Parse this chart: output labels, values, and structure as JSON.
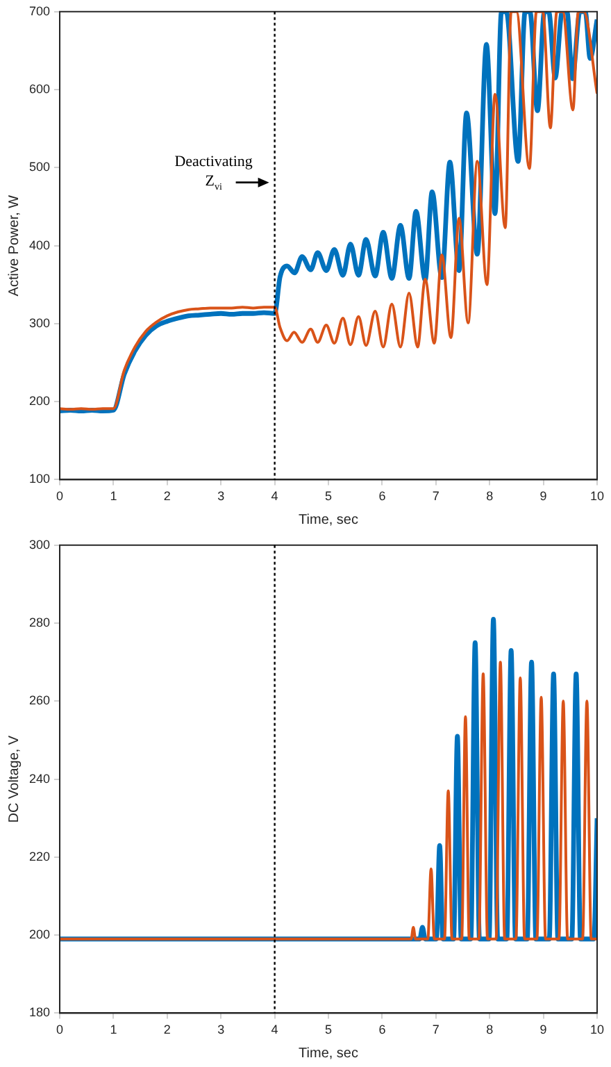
{
  "chart_data": [
    {
      "type": "line",
      "xlabel": "Time, sec",
      "ylabel": "Active Power, W",
      "xlim": [
        0,
        10
      ],
      "xticks": [
        0,
        1,
        2,
        3,
        4,
        5,
        6,
        7,
        8,
        9,
        10
      ],
      "ylim": [
        100,
        700
      ],
      "yticks": [
        100,
        200,
        300,
        400,
        500,
        600,
        700
      ],
      "grid": false,
      "legend": false,
      "marker": "none",
      "line_style": "solid",
      "ref_lines": [
        {
          "axis": "x",
          "value": 4,
          "line_style": "dotted",
          "color": "#000000"
        }
      ],
      "annotations": [
        {
          "text": "Deactivating Z$_{vi}$",
          "x": 4,
          "y": 481
        }
      ],
      "series": [
        {
          "color": "#0072bd",
          "x": [
            0,
            0.2,
            0.4,
            0.6,
            0.8,
            1.0,
            1.2,
            1.4,
            1.6,
            1.8,
            2.0,
            2.2,
            2.4,
            2.6,
            2.8,
            3.0,
            3.2,
            3.4,
            3.6,
            3.8,
            4.0,
            4.1,
            4.23,
            4.37,
            4.51,
            4.67,
            4.8,
            4.96,
            5.11,
            5.27,
            5.41,
            5.56,
            5.7,
            5.87,
            6.02,
            6.18,
            6.34,
            6.5,
            6.63,
            6.8,
            6.93,
            7.11,
            7.26,
            7.43,
            7.57,
            7.77,
            7.94,
            8.1,
            8.22,
            8.31,
            8.53,
            8.66,
            8.75,
            8.89,
            9.02,
            9.1,
            9.22,
            9.35,
            9.44,
            9.54,
            9.68,
            9.78,
            9.87,
            10
          ],
          "values": [
            188,
            189,
            188,
            189,
            188,
            189,
            235,
            265,
            285,
            297,
            303,
            307,
            310,
            311,
            312,
            313,
            312,
            313,
            313,
            314,
            313,
            360,
            374,
            365,
            386,
            369,
            391,
            368,
            395,
            362,
            402,
            362,
            408,
            361,
            417,
            358,
            426,
            358,
            444,
            356,
            469,
            359,
            507,
            368,
            570,
            389,
            658,
            441,
            700,
            700,
            508,
            700,
            700,
            573,
            700,
            700,
            615,
            700,
            700,
            614,
            700,
            700,
            640,
            690
          ]
        },
        {
          "color": "#d95319",
          "x": [
            0,
            0.2,
            0.4,
            0.6,
            0.8,
            1.0,
            1.2,
            1.4,
            1.6,
            1.8,
            2.0,
            2.2,
            2.4,
            2.6,
            2.8,
            3.0,
            3.2,
            3.4,
            3.6,
            3.8,
            4.0,
            4.1,
            4.23,
            4.36,
            4.51,
            4.67,
            4.8,
            4.96,
            5.11,
            5.27,
            5.41,
            5.56,
            5.7,
            5.87,
            6.02,
            6.18,
            6.34,
            6.5,
            6.66,
            6.8,
            6.97,
            7.11,
            7.28,
            7.43,
            7.6,
            7.77,
            7.95,
            8.1,
            8.29,
            8.4,
            8.5,
            8.74,
            8.87,
            8.99,
            9.13,
            9.25,
            9.36,
            9.55,
            9.65,
            9.75,
            10
          ],
          "values": [
            191,
            190,
            191,
            190,
            191,
            191,
            240,
            270,
            290,
            302,
            310,
            315,
            318,
            319,
            320,
            320,
            320,
            321,
            320,
            321,
            321,
            295,
            278,
            289,
            276,
            293,
            276,
            298,
            275,
            307,
            273,
            309,
            272,
            316,
            270,
            325,
            270,
            339,
            270,
            357,
            275,
            388,
            282,
            435,
            301,
            508,
            350,
            594,
            423,
            700,
            700,
            499,
            700,
            700,
            551,
            700,
            700,
            574,
            700,
            700,
            595
          ]
        }
      ]
    },
    {
      "type": "line",
      "xlabel": "Time, sec",
      "ylabel": "DC Voltage, V",
      "xlim": [
        0,
        10
      ],
      "xticks": [
        0,
        1,
        2,
        3,
        4,
        5,
        6,
        7,
        8,
        9,
        10
      ],
      "ylim": [
        180,
        300
      ],
      "yticks": [
        180,
        200,
        220,
        240,
        260,
        280,
        300
      ],
      "grid": false,
      "legend": false,
      "marker": "none",
      "line_style": "solid",
      "ref_lines": [
        {
          "axis": "x",
          "value": 4,
          "line_style": "dotted",
          "color": "#000000"
        }
      ],
      "series": [
        {
          "color": "#0072bd",
          "x": [
            0,
            6.7,
            6.75,
            6.8,
            7.01,
            7.07,
            7.13,
            7.33,
            7.4,
            7.47,
            7.65,
            7.73,
            7.81,
            7.99,
            8.07,
            8.15,
            8.32,
            8.4,
            8.48,
            8.7,
            8.78,
            8.86,
            9.11,
            9.19,
            9.27,
            9.53,
            9.61,
            9.69,
            9.94,
            10
          ],
          "values": [
            199,
            199,
            202,
            199,
            199,
            223,
            199,
            199,
            251,
            199,
            199,
            275,
            199,
            199,
            281,
            199,
            199,
            273,
            199,
            199,
            270,
            199,
            199,
            267,
            199,
            199,
            267,
            199,
            199,
            230
          ]
        },
        {
          "color": "#d95319",
          "x": [
            0,
            6.54,
            6.58,
            6.62,
            6.85,
            6.91,
            6.97,
            7.16,
            7.23,
            7.3,
            7.48,
            7.55,
            7.62,
            7.8,
            7.88,
            7.96,
            8.12,
            8.2,
            8.28,
            8.49,
            8.57,
            8.65,
            8.88,
            8.96,
            9.04,
            9.29,
            9.37,
            9.45,
            9.73,
            9.81,
            9.89,
            10
          ],
          "values": [
            199,
            199,
            202,
            199,
            199,
            217,
            199,
            199,
            237,
            199,
            199,
            256,
            199,
            199,
            267,
            199,
            199,
            270,
            199,
            199,
            266,
            199,
            199,
            261,
            199,
            199,
            260,
            199,
            199,
            260,
            199,
            199
          ]
        }
      ]
    }
  ]
}
